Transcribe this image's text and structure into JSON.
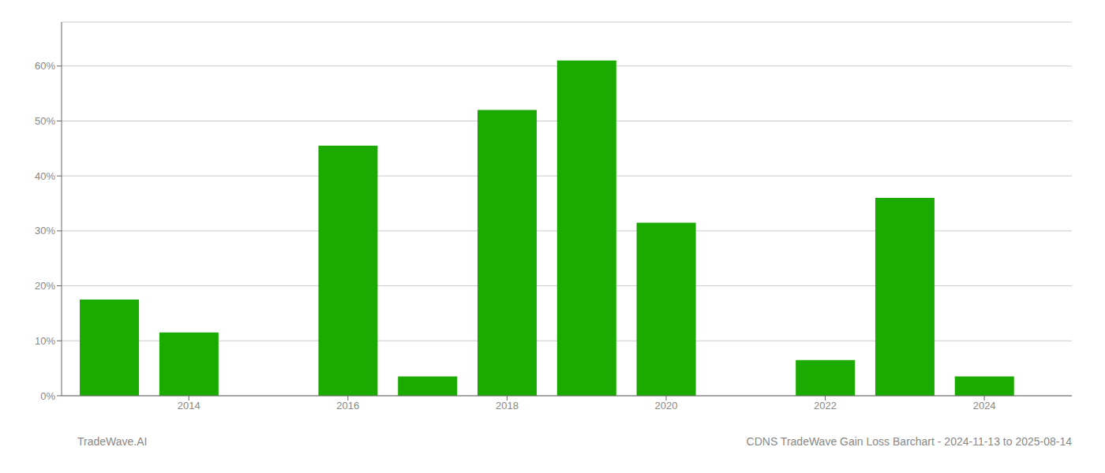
{
  "chart_data": {
    "type": "bar",
    "x": [
      2013,
      2014,
      2015,
      2016,
      2017,
      2018,
      2019,
      2020,
      2021,
      2022,
      2023,
      2024
    ],
    "values": [
      17.5,
      11.5,
      0.0,
      45.5,
      3.5,
      52.0,
      61.0,
      31.5,
      0.0,
      6.5,
      36.0,
      3.5
    ],
    "color": "#1aaa00",
    "xlim": [
      2012.4,
      2025.1
    ],
    "xticks": [
      2014,
      2016,
      2018,
      2020,
      2022,
      2024
    ],
    "ylim": [
      0,
      68
    ],
    "yticks": [
      {
        "value": 0,
        "label": "0%"
      },
      {
        "value": 10,
        "label": "10%"
      },
      {
        "value": 20,
        "label": "20%"
      },
      {
        "value": 30,
        "label": "30%"
      },
      {
        "value": 40,
        "label": "40%"
      },
      {
        "value": 50,
        "label": "50%"
      },
      {
        "value": 60,
        "label": "60%"
      }
    ],
    "grid": true,
    "annotations": [
      "TradeWave.AI",
      "CDNS TradeWave Gain Loss Barchart - 2024-11-13 to 2025-08-14"
    ]
  }
}
